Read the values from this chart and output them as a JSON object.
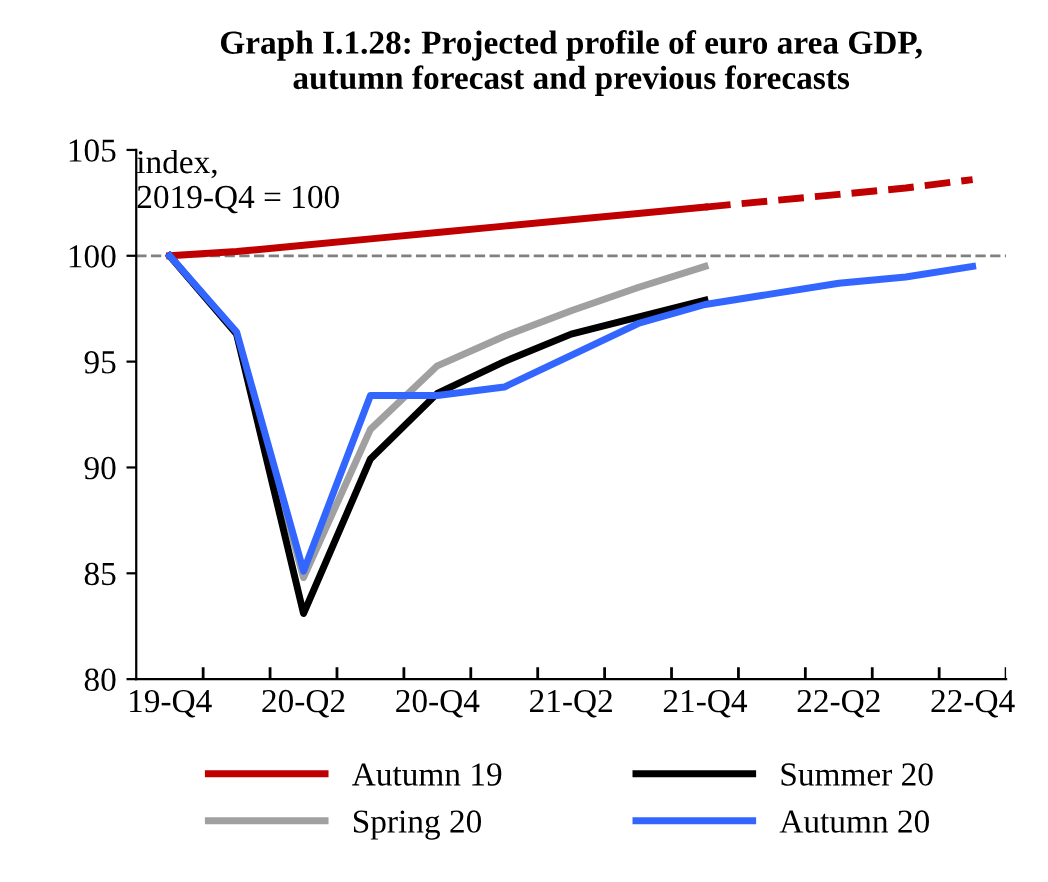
{
  "chart_data": {
    "type": "line",
    "title": "Graph I.1.28: Projected profile of euro area GDP,\nautumn forecast and previous forecasts",
    "categories": [
      "19-Q4",
      null,
      "20-Q2",
      null,
      "20-Q4",
      null,
      "21-Q2",
      null,
      "21-Q4",
      null,
      "22-Q2",
      null,
      "22-Q4"
    ],
    "series": [
      {
        "name": "Autumn 19",
        "color": "#c00000",
        "values": [
          100,
          100.2,
          100.5,
          100.8,
          101.1,
          101.4,
          101.7,
          102.0,
          102.3,
          null,
          null,
          null,
          null
        ]
      },
      {
        "color": "#c00000",
        "line_style": "dashed",
        "values": [
          null,
          null,
          null,
          null,
          null,
          null,
          null,
          null,
          102.3,
          102.6,
          102.9,
          103.2,
          103.6
        ]
      },
      {
        "name": "Spring 20",
        "color": "#a0a0a0",
        "values": [
          100,
          96.3,
          84.8,
          91.8,
          94.8,
          96.2,
          97.4,
          98.5,
          99.5,
          null,
          null,
          null,
          null
        ]
      },
      {
        "name": "Summer 20",
        "color": "#000000",
        "values": [
          100,
          96.3,
          83.1,
          90.4,
          93.5,
          95.0,
          96.3,
          97.1,
          97.9,
          null,
          null,
          null,
          null
        ]
      },
      {
        "name": "Autumn 20",
        "color": "#3366ff",
        "values": [
          100,
          96.4,
          85.1,
          93.4,
          93.4,
          93.8,
          95.3,
          96.8,
          97.7,
          98.2,
          98.7,
          99.0,
          99.5
        ]
      }
    ],
    "ylim": [
      80,
      105
    ],
    "yticks": [
      80,
      85,
      90,
      95,
      100,
      105
    ],
    "ref_lines": [
      {
        "axis": "y",
        "value": 100,
        "color": "#808080",
        "line_style": "dashed"
      }
    ],
    "annotations": [
      "index,\n2019-Q4 = 100"
    ],
    "grid": false,
    "legend": "bottom",
    "line_style": "solid",
    "marker": "none"
  }
}
